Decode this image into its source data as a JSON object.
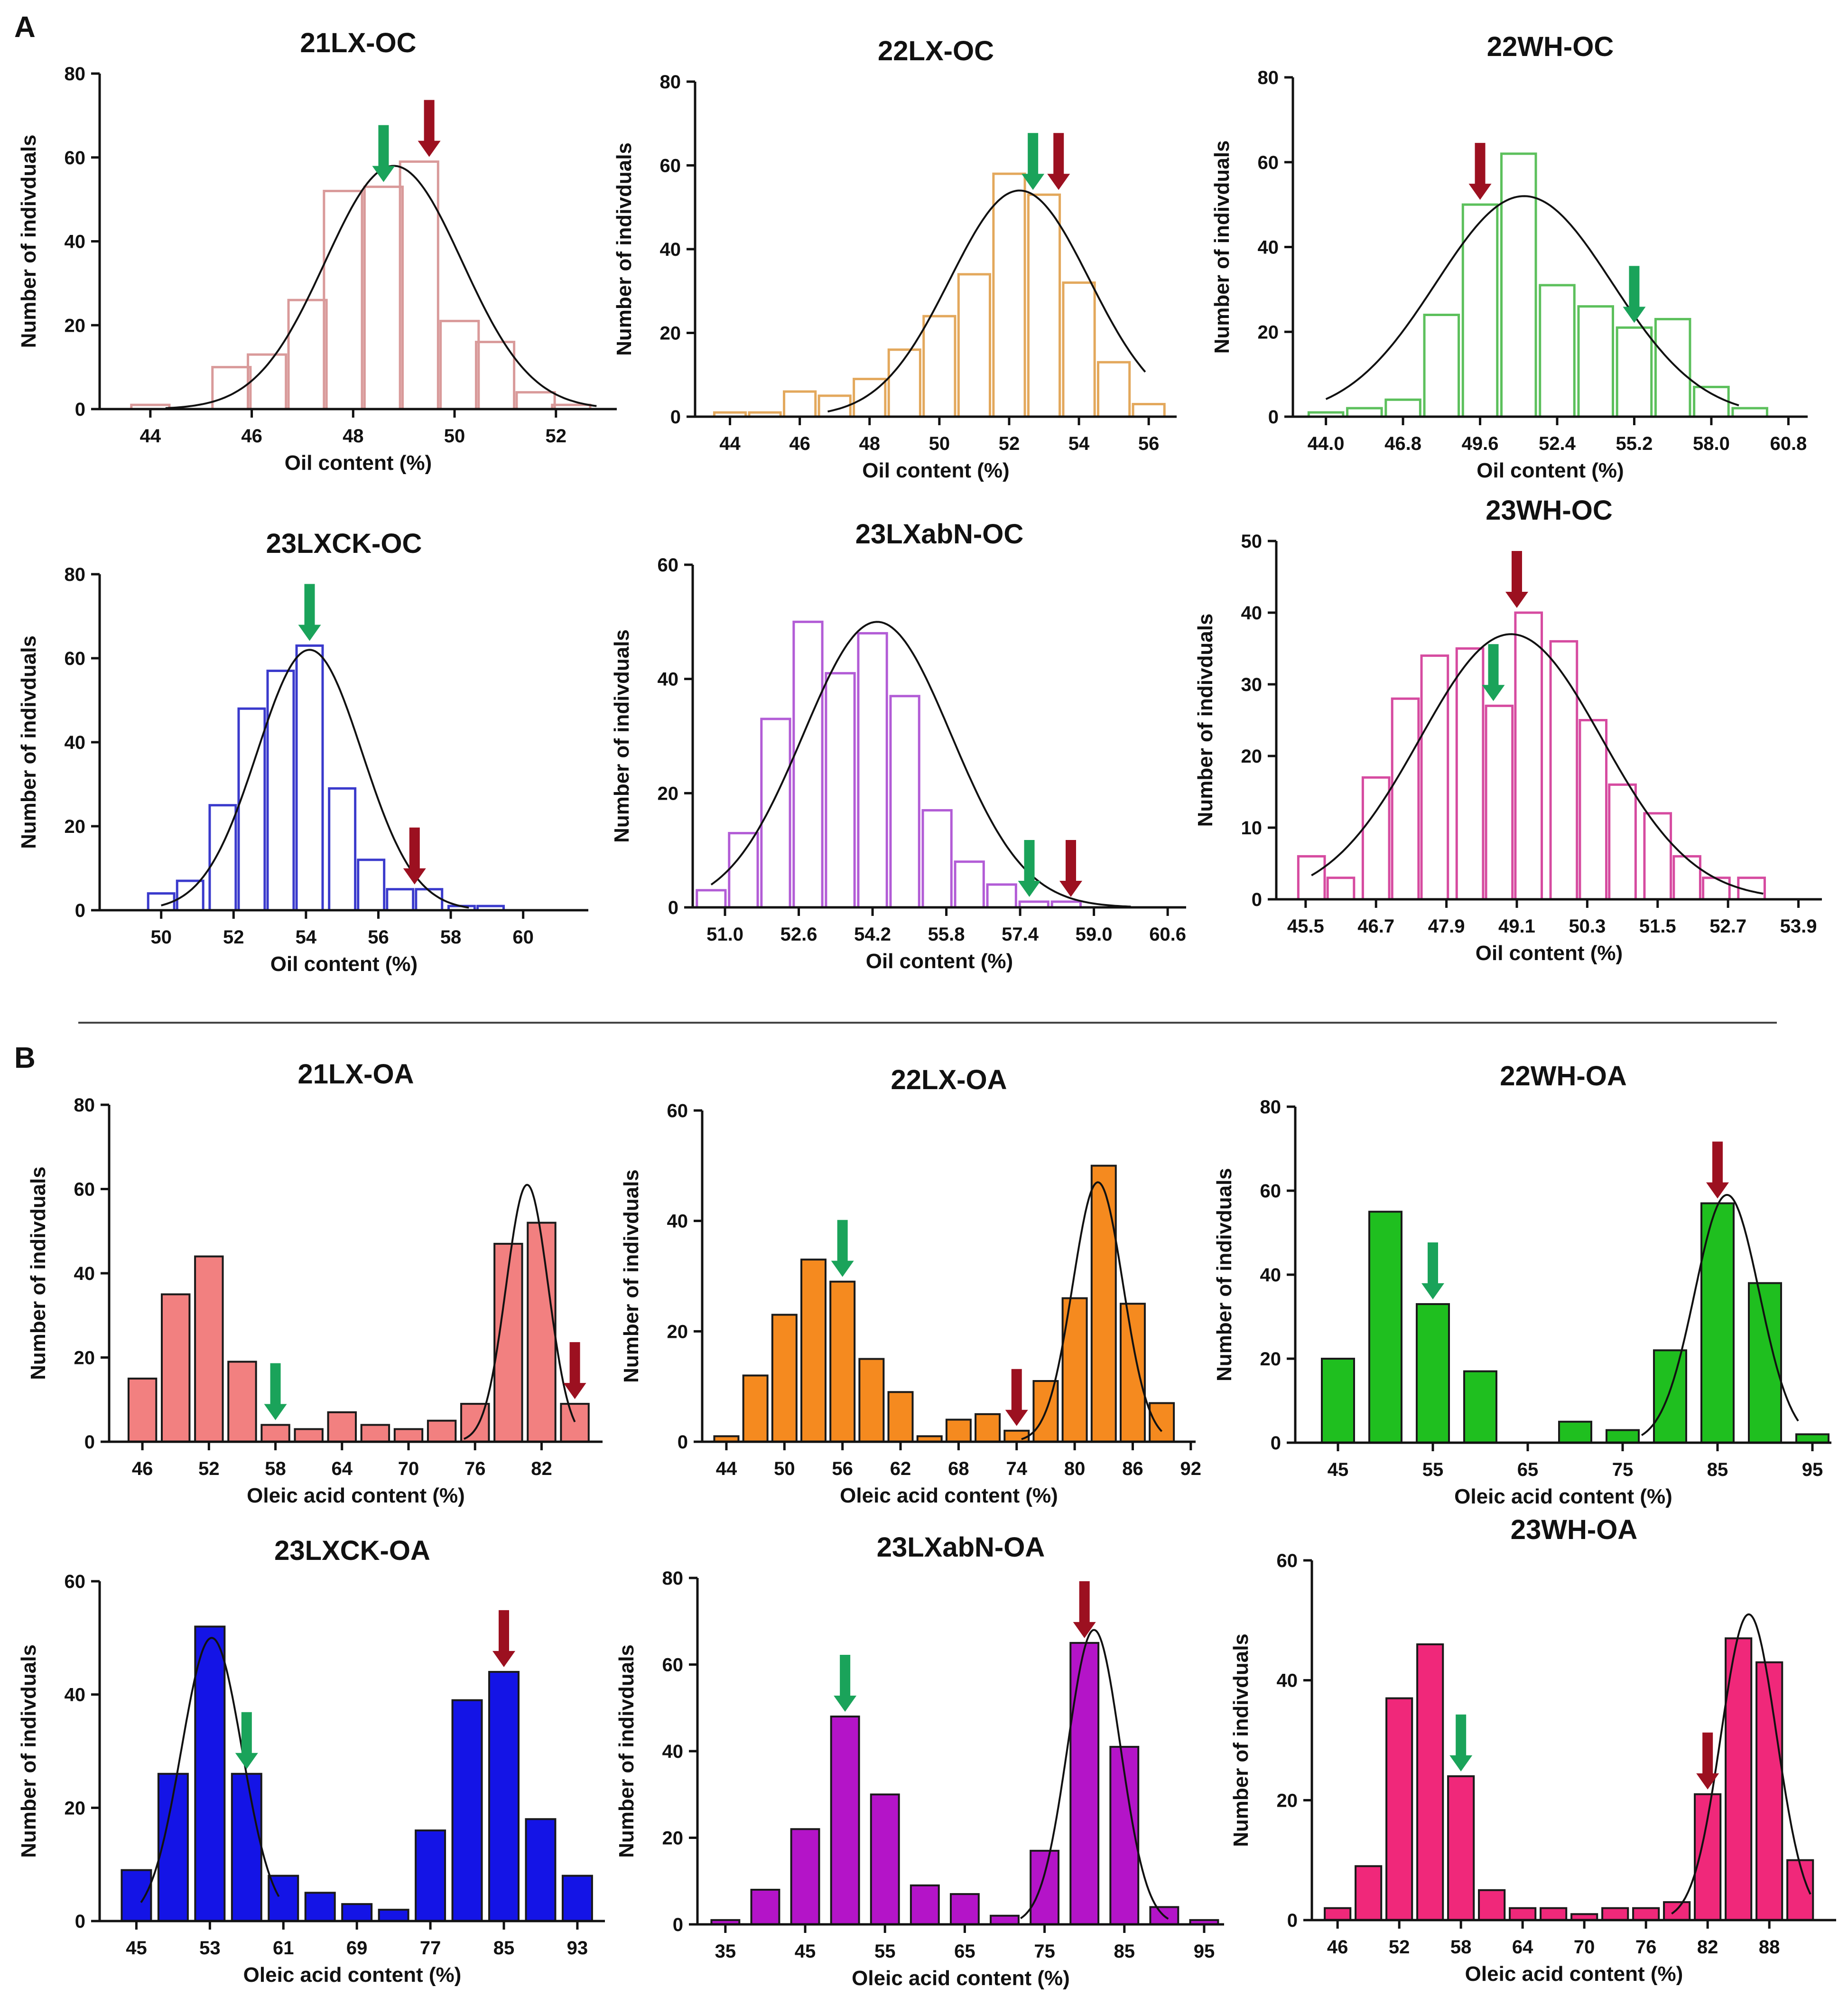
{
  "panels": [
    {
      "letter": "A"
    },
    {
      "letter": "B"
    }
  ],
  "colors": {
    "green_arrow": "#1aa35a",
    "red_arrow": "#9c1020",
    "curve": "#111111"
  },
  "chart_data": [
    {
      "type": "bar",
      "name": "21LX-OC",
      "title": "21LX-OC",
      "xlabel": "Oil content (%)",
      "ylabel": "Number of indivduals",
      "fill": false,
      "color": "#d99a9a",
      "xlim": [
        43.0,
        53.2
      ],
      "ylim": [
        0,
        80
      ],
      "yticks": [
        0,
        20,
        40,
        60,
        80
      ],
      "xticks": [
        44,
        46,
        48,
        50,
        52
      ],
      "xtick_labels": [
        "44",
        "46",
        "48",
        "50",
        "52"
      ],
      "bins": [
        44.0,
        45.6,
        46.3,
        47.1,
        47.8,
        48.6,
        49.3,
        50.1,
        50.8,
        51.6,
        52.3
      ],
      "values": [
        1,
        10,
        13,
        26,
        52,
        53,
        59,
        21,
        16,
        4,
        1
      ],
      "bin_width": 0.75,
      "curves": [
        {
          "mean": 48.8,
          "sd": 1.35,
          "peak": 58,
          "x_from": 44.3,
          "x_to": 52.8
        }
      ],
      "arrows": {
        "green": [
          48.6
        ],
        "red": [
          49.5
        ]
      }
    },
    {
      "type": "bar",
      "name": "22LX-OC",
      "title": "22LX-OC",
      "xlabel": "Oil content (%)",
      "ylabel": "Number of indivduals",
      "fill": false,
      "color": "#e3a85c",
      "xlim": [
        43.0,
        56.8
      ],
      "ylim": [
        0,
        80
      ],
      "yticks": [
        0,
        20,
        40,
        60,
        80
      ],
      "xticks": [
        44,
        46,
        48,
        50,
        52,
        54,
        56
      ],
      "xtick_labels": [
        "44",
        "46",
        "48",
        "50",
        "52",
        "54",
        "56"
      ],
      "bins": [
        44.0,
        45.0,
        46.0,
        47.0,
        48.0,
        49.0,
        50.0,
        51.0,
        52.0,
        53.0,
        54.0,
        55.0,
        56.0
      ],
      "values": [
        1,
        1,
        6,
        5,
        9,
        16,
        24,
        34,
        58,
        53,
        32,
        13,
        3
      ],
      "bin_width": 0.9,
      "curves": [
        {
          "mean": 52.3,
          "sd": 2.0,
          "peak": 54,
          "x_from": 46.8,
          "x_to": 55.9
        }
      ],
      "arrows": {
        "green": [
          52.9
        ],
        "red": [
          53.2
        ]
      }
    },
    {
      "type": "bar",
      "name": "22WH-OC",
      "title": "22WH-OC",
      "xlabel": "Oil content (%)",
      "ylabel": "Number of indivduals",
      "fill": false,
      "color": "#5cc05c",
      "xlim": [
        42.8,
        61.5
      ],
      "ylim": [
        0,
        80
      ],
      "yticks": [
        0,
        20,
        40,
        60,
        80
      ],
      "xticks": [
        44.0,
        46.8,
        49.6,
        52.4,
        55.2,
        58.0,
        60.8
      ],
      "xtick_labels": [
        "44.0",
        "46.8",
        "49.6",
        "52.4",
        "55.2",
        "58.0",
        "60.8"
      ],
      "bins": [
        44.0,
        45.4,
        46.8,
        48.2,
        49.6,
        51.0,
        52.4,
        53.8,
        55.2,
        56.6,
        58.0,
        59.4
      ],
      "values": [
        1,
        2,
        4,
        24,
        50,
        62,
        31,
        26,
        21,
        23,
        7,
        2
      ],
      "bin_width": 1.25,
      "curves": [
        {
          "mean": 51.2,
          "sd": 3.2,
          "peak": 52,
          "x_from": 44.0,
          "x_to": 59.0
        }
      ],
      "arrows": {
        "green": [
          55.2
        ],
        "red": [
          49.6
        ]
      }
    },
    {
      "type": "bar",
      "name": "23LXCK-OC",
      "title": "23LXCK-OC",
      "xlabel": "Oil content (%)",
      "ylabel": "Number of indivduals",
      "fill": false,
      "color": "#3a3acc",
      "xlim": [
        48.3,
        61.8
      ],
      "ylim": [
        0,
        80
      ],
      "yticks": [
        0,
        20,
        40,
        60,
        80
      ],
      "xticks": [
        50,
        52,
        54,
        56,
        58,
        60
      ],
      "xtick_labels": [
        "50",
        "52",
        "54",
        "56",
        "58",
        "60"
      ],
      "bins": [
        50.0,
        50.8,
        51.7,
        52.5,
        53.3,
        54.1,
        55.0,
        55.8,
        56.6,
        57.4,
        58.3,
        59.1,
        59.9
      ],
      "values": [
        4,
        7,
        25,
        48,
        57,
        63,
        29,
        12,
        5,
        5,
        1,
        1,
        0
      ],
      "bin_width": 0.72,
      "curves": [
        {
          "mean": 54.1,
          "sd": 1.45,
          "peak": 62,
          "x_from": 50.0,
          "x_to": 58.5
        }
      ],
      "arrows": {
        "green": [
          54.1
        ],
        "red": [
          57.0
        ]
      }
    },
    {
      "type": "bar",
      "name": "23LXabN-OC",
      "title": "23LXabN-OC",
      "xlabel": "Oil content (%)",
      "ylabel": "Number of indivduals",
      "fill": false,
      "color": "#b25cd6",
      "xlim": [
        50.3,
        61.0
      ],
      "ylim": [
        0,
        60
      ],
      "yticks": [
        0,
        20,
        40,
        60
      ],
      "xticks": [
        51.0,
        52.6,
        54.2,
        55.8,
        57.4,
        59.0,
        60.6
      ],
      "xtick_labels": [
        "51.0",
        "52.6",
        "54.2",
        "55.8",
        "57.4",
        "59.0",
        "60.6"
      ],
      "bins": [
        50.7,
        51.4,
        52.1,
        52.8,
        53.5,
        54.2,
        54.9,
        55.6,
        56.3,
        57.0,
        57.7,
        58.4,
        59.1,
        59.8,
        60.5
      ],
      "values": [
        3,
        13,
        33,
        50,
        41,
        48,
        37,
        17,
        8,
        4,
        1,
        1,
        0,
        0,
        0
      ],
      "bin_width": 0.62,
      "curves": [
        {
          "mean": 54.3,
          "sd": 1.6,
          "peak": 50,
          "x_from": 50.7,
          "x_to": 59.8
        }
      ],
      "arrows": {
        "green": [
          57.6
        ],
        "red": [
          58.5
        ]
      }
    },
    {
      "type": "bar",
      "name": "23WH-OC",
      "title": "23WH-OC",
      "xlabel": "Oil content (%)",
      "ylabel": "Number of indivduals",
      "fill": false,
      "color": "#d64ba0",
      "xlim": [
        45.0,
        54.3
      ],
      "ylim": [
        0,
        50
      ],
      "yticks": [
        0,
        10,
        20,
        30,
        40,
        50
      ],
      "xticks": [
        45.5,
        46.7,
        47.9,
        49.1,
        50.3,
        51.5,
        52.7,
        53.9
      ],
      "xtick_labels": [
        "45.5",
        "46.7",
        "47.9",
        "49.1",
        "50.3",
        "51.5",
        "52.7",
        "53.9"
      ],
      "bins": [
        45.6,
        46.1,
        46.7,
        47.2,
        47.7,
        48.3,
        48.8,
        49.3,
        49.9,
        50.4,
        50.9,
        51.5,
        52.0,
        52.5,
        53.1
      ],
      "values": [
        6,
        3,
        17,
        28,
        34,
        35,
        27,
        40,
        36,
        25,
        16,
        12,
        6,
        3,
        3
      ],
      "bin_width": 0.45,
      "curves": [
        {
          "mean": 49.0,
          "sd": 1.55,
          "peak": 37,
          "x_from": 45.6,
          "x_to": 53.3
        }
      ],
      "arrows": {
        "green": [
          48.7
        ],
        "red": [
          49.1
        ]
      }
    },
    {
      "type": "bar",
      "name": "21LX-OA",
      "title": "21LX-OA",
      "xlabel": "Oleic acid content (%)",
      "ylabel": "Number of indivduals",
      "fill": true,
      "color": "#f28080",
      "xlim": [
        43.0,
        87.5
      ],
      "ylim": [
        0,
        80
      ],
      "yticks": [
        0,
        20,
        40,
        60,
        80
      ],
      "xticks": [
        46,
        52,
        58,
        64,
        70,
        76,
        82
      ],
      "xtick_labels": [
        "46",
        "52",
        "58",
        "64",
        "70",
        "76",
        "82"
      ],
      "bins": [
        46,
        49,
        52,
        55,
        58,
        61,
        64,
        67,
        70,
        73,
        76,
        79,
        82,
        85
      ],
      "values": [
        15,
        35,
        44,
        19,
        4,
        3,
        7,
        4,
        3,
        5,
        9,
        47,
        52,
        9
      ],
      "bin_width": 2.5,
      "curves": [
        {
          "mean": 80.7,
          "sd": 1.9,
          "peak": 61,
          "x_from": 75.0,
          "x_to": 85.0
        }
      ],
      "arrows": {
        "green": [
          58
        ],
        "red": [
          85
        ]
      }
    },
    {
      "type": "bar",
      "name": "22LX-OA",
      "title": "22LX-OA",
      "xlabel": "Oleic acid content (%)",
      "ylabel": "Number of indivduals",
      "fill": true,
      "color": "#f58a1f",
      "xlim": [
        41.5,
        92.5
      ],
      "ylim": [
        0,
        60
      ],
      "yticks": [
        0,
        20,
        40,
        60
      ],
      "xticks": [
        44,
        50,
        56,
        62,
        68,
        74,
        80,
        86,
        92
      ],
      "xtick_labels": [
        "44",
        "50",
        "56",
        "62",
        "68",
        "74",
        "80",
        "86",
        "92"
      ],
      "bins": [
        44,
        47,
        50,
        53,
        56,
        59,
        62,
        65,
        68,
        71,
        74,
        77,
        80,
        83,
        86,
        89
      ],
      "values": [
        1,
        12,
        23,
        33,
        29,
        15,
        9,
        1,
        4,
        5,
        2,
        11,
        26,
        50,
        25,
        7
      ],
      "bin_width": 2.5,
      "curves": [
        {
          "mean": 82.4,
          "sd": 2.6,
          "peak": 47,
          "x_from": 74.5,
          "x_to": 89.0
        }
      ],
      "arrows": {
        "green": [
          56
        ],
        "red": [
          74
        ]
      }
    },
    {
      "type": "bar",
      "name": "22WH-OA",
      "title": "22WH-OA",
      "xlabel": "Oleic acid content (%)",
      "ylabel": "Number of indivduals",
      "fill": true,
      "color": "#1fbf1f",
      "xlim": [
        40.5,
        97.0
      ],
      "ylim": [
        0,
        80
      ],
      "yticks": [
        0,
        20,
        40,
        60,
        80
      ],
      "xticks": [
        45,
        55,
        65,
        75,
        85,
        95
      ],
      "xtick_labels": [
        "45",
        "55",
        "65",
        "75",
        "85",
        "95"
      ],
      "bins": [
        45,
        50,
        55,
        60,
        65,
        70,
        75,
        80,
        85,
        90,
        95
      ],
      "values": [
        20,
        55,
        33,
        17,
        0,
        5,
        3,
        22,
        57,
        38,
        2
      ],
      "bin_width": 3.4,
      "curves": [
        {
          "mean": 86.0,
          "sd": 3.4,
          "peak": 59,
          "x_from": 77.0,
          "x_to": 93.5
        }
      ],
      "arrows": {
        "green": [
          55
        ],
        "red": [
          85
        ]
      }
    },
    {
      "type": "bar",
      "name": "23LXCK-OA",
      "title": "23LXCK-OA",
      "xlabel": "Oleic acid content (%)",
      "ylabel": "Number of indivduals",
      "fill": true,
      "color": "#1414e6",
      "xlim": [
        41.0,
        96.0
      ],
      "ylim": [
        0,
        60
      ],
      "yticks": [
        0,
        20,
        40,
        60
      ],
      "xticks": [
        45,
        53,
        61,
        69,
        77,
        85,
        93
      ],
      "xtick_labels": [
        "45",
        "53",
        "61",
        "69",
        "77",
        "85",
        "93"
      ],
      "bins": [
        45,
        49,
        53,
        57,
        61,
        65,
        69,
        73,
        77,
        81,
        85,
        89,
        93
      ],
      "values": [
        9,
        26,
        52,
        26,
        8,
        5,
        3,
        2,
        16,
        39,
        44,
        18,
        8
      ],
      "bin_width": 3.2,
      "curves": [
        {
          "mean": 53.2,
          "sd": 3.3,
          "peak": 50,
          "x_from": 45.5,
          "x_to": 60.5
        }
      ],
      "arrows": {
        "green": [
          57
        ],
        "red": [
          85
        ]
      }
    },
    {
      "type": "bar",
      "name": "23LXabN-OA",
      "title": "23LXabN-OA",
      "xlabel": "Oleic acid content (%)",
      "ylabel": "Number of indivduals",
      "fill": true,
      "color": "#b414c8",
      "xlim": [
        31.5,
        97.5
      ],
      "ylim": [
        0,
        80
      ],
      "yticks": [
        0,
        20,
        40,
        60,
        80
      ],
      "xticks": [
        35,
        45,
        55,
        65,
        75,
        85,
        95
      ],
      "xtick_labels": [
        "35",
        "45",
        "55",
        "65",
        "75",
        "85",
        "95"
      ],
      "bins": [
        35,
        40,
        45,
        50,
        55,
        60,
        65,
        70,
        75,
        80,
        85,
        90,
        95
      ],
      "values": [
        1,
        8,
        22,
        48,
        30,
        9,
        7,
        2,
        17,
        65,
        41,
        4,
        1
      ],
      "bin_width": 3.5,
      "curves": [
        {
          "mean": 81.2,
          "sd": 3.3,
          "peak": 68,
          "x_from": 72.0,
          "x_to": 90.5
        }
      ],
      "arrows": {
        "green": [
          50
        ],
        "red": [
          80
        ]
      }
    },
    {
      "type": "bar",
      "name": "23WH-OA",
      "title": "23WH-OA",
      "xlabel": "Oleic acid content (%)",
      "ylabel": "Number of indivduals",
      "fill": true,
      "color": "#f0287a",
      "xlim": [
        43.5,
        94.5
      ],
      "ylim": [
        0,
        60
      ],
      "yticks": [
        0,
        20,
        40,
        60
      ],
      "xticks": [
        46,
        52,
        58,
        64,
        70,
        76,
        82,
        88
      ],
      "xtick_labels": [
        "46",
        "52",
        "58",
        "64",
        "70",
        "76",
        "82",
        "88"
      ],
      "bins": [
        46,
        49,
        52,
        55,
        58,
        61,
        64,
        67,
        70,
        73,
        76,
        79,
        82,
        85,
        88,
        91
      ],
      "values": [
        2,
        9,
        37,
        46,
        24,
        5,
        2,
        2,
        1,
        2,
        2,
        3,
        21,
        47,
        43,
        10
      ],
      "bin_width": 2.5,
      "curves": [
        {
          "mean": 86.0,
          "sd": 2.7,
          "peak": 51,
          "x_from": 78.5,
          "x_to": 92.0
        }
      ],
      "arrows": {
        "green": [
          58
        ],
        "red": [
          82
        ]
      }
    }
  ]
}
